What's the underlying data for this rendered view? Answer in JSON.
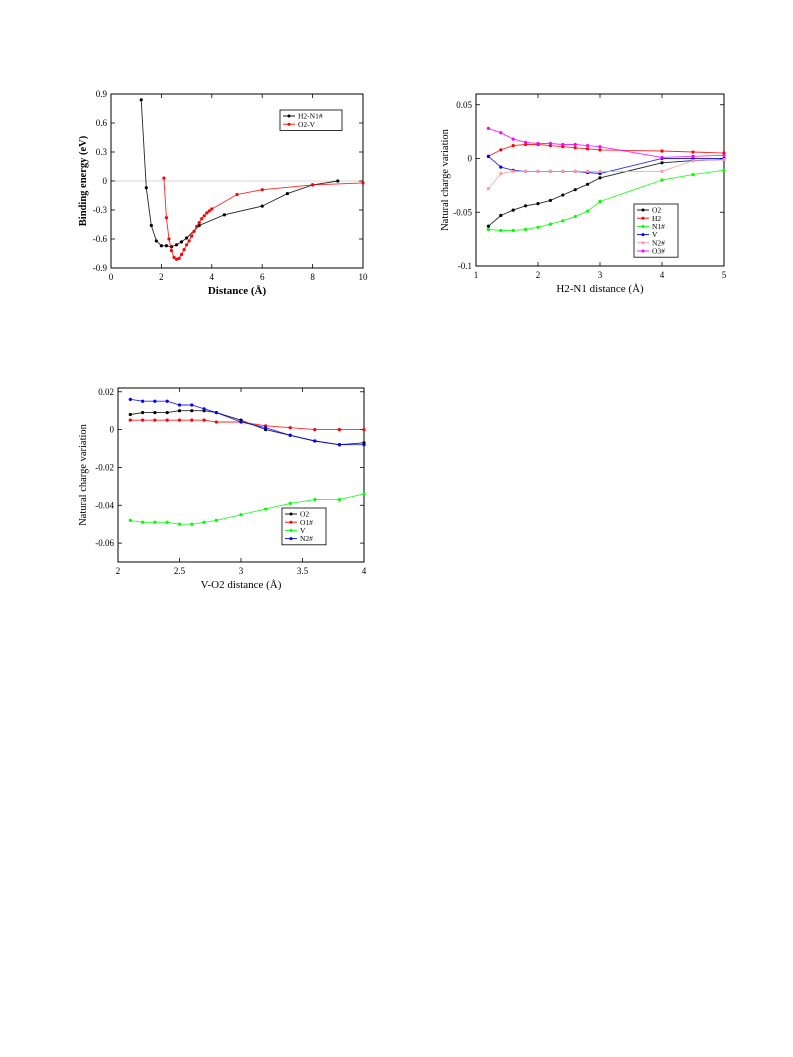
{
  "chart_data": [
    {
      "type": "line",
      "xlabel": "Distance (Å)",
      "ylabel": "Binding energy (eV)",
      "xlim": [
        0,
        10
      ],
      "ylim": [
        -0.9,
        0.9
      ],
      "xticks": [
        0,
        2,
        4,
        6,
        8,
        10
      ],
      "xtick_labels": [
        "0",
        "2",
        "4",
        "6",
        "8",
        "10"
      ],
      "yticks": [
        -0.9,
        -0.6,
        -0.3,
        0,
        0.3,
        0.6,
        0.9
      ],
      "ytick_labels": [
        "-0.9",
        "-0.6",
        "-0.3",
        "0",
        "0.3",
        "0.6",
        "0.9"
      ],
      "zero_line": true,
      "legend_position": "top-right",
      "series": [
        {
          "name": "H2-N1#",
          "color": "#000000",
          "x": [
            1.2,
            1.4,
            1.6,
            1.8,
            2.0,
            2.2,
            2.4,
            2.6,
            2.8,
            3.0,
            3.5,
            4.5,
            6.0,
            7.0,
            8.0,
            9.0
          ],
          "y": [
            0.84,
            -0.07,
            -0.46,
            -0.62,
            -0.67,
            -0.67,
            -0.68,
            -0.66,
            -0.63,
            -0.59,
            -0.46,
            -0.35,
            -0.26,
            -0.13,
            -0.04,
            0.0
          ]
        },
        {
          "name": "O2-V",
          "color": "#ff0000",
          "x": [
            2.1,
            2.2,
            2.3,
            2.4,
            2.5,
            2.6,
            2.7,
            2.8,
            2.9,
            3.0,
            3.1,
            3.2,
            3.3,
            3.4,
            3.5,
            3.6,
            3.7,
            3.8,
            3.9,
            4.0,
            5.0,
            6.0,
            8.0,
            10.0
          ],
          "y": [
            0.03,
            -0.38,
            -0.6,
            -0.72,
            -0.79,
            -0.81,
            -0.8,
            -0.76,
            -0.71,
            -0.66,
            -0.62,
            -0.57,
            -0.52,
            -0.47,
            -0.43,
            -0.39,
            -0.36,
            -0.33,
            -0.31,
            -0.29,
            -0.14,
            -0.09,
            -0.04,
            -0.02
          ]
        }
      ]
    },
    {
      "type": "line",
      "xlabel": "H2-N1 distance (Å)",
      "ylabel": "Natural charge variation",
      "xlim": [
        1,
        5
      ],
      "ylim": [
        -0.1,
        0.06
      ],
      "xticks": [
        1,
        2,
        3,
        4,
        5
      ],
      "xtick_labels": [
        "1",
        "2",
        "3",
        "4",
        "5"
      ],
      "yticks": [
        -0.1,
        -0.05,
        0,
        0.05
      ],
      "ytick_labels": [
        "-0.1",
        "-0.05",
        "0",
        "0.05"
      ],
      "legend_position": "bottom-right",
      "series": [
        {
          "name": "O2",
          "color": "#000000",
          "x": [
            1.2,
            1.4,
            1.6,
            1.8,
            2.0,
            2.2,
            2.4,
            2.6,
            2.8,
            3.0,
            4.0,
            4.5,
            5.0
          ],
          "y": [
            -0.063,
            -0.053,
            -0.048,
            -0.044,
            -0.042,
            -0.039,
            -0.034,
            -0.029,
            -0.024,
            -0.018,
            -0.004,
            -0.002,
            -0.001
          ]
        },
        {
          "name": "H2",
          "color": "#ff0000",
          "x": [
            1.2,
            1.4,
            1.6,
            1.8,
            2.0,
            2.2,
            2.4,
            2.6,
            2.8,
            3.0,
            4.0,
            4.5,
            5.0
          ],
          "y": [
            0.002,
            0.008,
            0.012,
            0.013,
            0.013,
            0.012,
            0.011,
            0.01,
            0.009,
            0.008,
            0.007,
            0.006,
            0.005
          ]
        },
        {
          "name": "N1#",
          "color": "#00ff00",
          "x": [
            1.2,
            1.4,
            1.6,
            1.8,
            2.0,
            2.2,
            2.4,
            2.6,
            2.8,
            3.0,
            4.0,
            4.5,
            5.0
          ],
          "y": [
            -0.066,
            -0.067,
            -0.067,
            -0.066,
            -0.064,
            -0.061,
            -0.058,
            -0.054,
            -0.049,
            -0.04,
            -0.02,
            -0.015,
            -0.011
          ]
        },
        {
          "name": "V",
          "color": "#0000ff",
          "x": [
            1.2,
            1.4,
            1.6,
            1.8,
            2.0,
            2.2,
            2.4,
            2.6,
            2.8,
            3.0,
            4.0,
            4.5,
            5.0
          ],
          "y": [
            0.002,
            -0.008,
            -0.011,
            -0.012,
            -0.012,
            -0.012,
            -0.012,
            -0.012,
            -0.013,
            -0.014,
            0.0,
            0.0,
            0.0
          ]
        },
        {
          "name": "N2#",
          "color": "#ff9999",
          "x": [
            1.2,
            1.4,
            1.6,
            1.8,
            2.0,
            2.2,
            2.4,
            2.6,
            2.8,
            3.0,
            4.0,
            4.5,
            5.0
          ],
          "y": [
            -0.028,
            -0.014,
            -0.012,
            -0.012,
            -0.012,
            -0.012,
            -0.012,
            -0.012,
            -0.012,
            -0.012,
            -0.012,
            -0.002,
            -0.001
          ]
        },
        {
          "name": "O3#",
          "color": "#ff00ff",
          "x": [
            1.2,
            1.4,
            1.6,
            1.8,
            2.0,
            2.2,
            2.4,
            2.6,
            2.8,
            3.0,
            4.0,
            4.5,
            5.0
          ],
          "y": [
            0.028,
            0.024,
            0.018,
            0.015,
            0.014,
            0.014,
            0.013,
            0.013,
            0.012,
            0.011,
            0.001,
            0.002,
            0.003
          ]
        }
      ]
    },
    {
      "type": "line",
      "xlabel": "V-O2 distance (Å)",
      "ylabel": "Natural charge variation",
      "xlim": [
        2,
        4
      ],
      "ylim": [
        -0.07,
        0.022
      ],
      "xticks": [
        2,
        2.5,
        3,
        3.5,
        4
      ],
      "xtick_labels": [
        "2",
        "2.5",
        "3",
        "3.5",
        "4"
      ],
      "yticks": [
        -0.06,
        -0.04,
        -0.02,
        0,
        0.02
      ],
      "ytick_labels": [
        "-0.06",
        "-0.04",
        "-0.02",
        "0",
        "0.02"
      ],
      "legend_position": "bottom-right",
      "series": [
        {
          "name": "O2",
          "color": "#000000",
          "x": [
            2.1,
            2.2,
            2.3,
            2.4,
            2.5,
            2.6,
            2.7,
            2.8,
            3.0,
            3.2,
            3.4,
            3.6,
            3.8,
            4.0
          ],
          "y": [
            0.008,
            0.009,
            0.009,
            0.009,
            0.01,
            0.01,
            0.01,
            0.009,
            0.005,
            0.0,
            -0.003,
            -0.006,
            -0.008,
            -0.007
          ]
        },
        {
          "name": "O1#",
          "color": "#ff0000",
          "x": [
            2.1,
            2.2,
            2.3,
            2.4,
            2.5,
            2.6,
            2.7,
            2.8,
            3.0,
            3.2,
            3.4,
            3.6,
            3.8,
            4.0
          ],
          "y": [
            0.005,
            0.005,
            0.005,
            0.005,
            0.005,
            0.005,
            0.005,
            0.004,
            0.004,
            0.002,
            0.001,
            0.0,
            0.0,
            0.0
          ]
        },
        {
          "name": "V",
          "color": "#00ff00",
          "x": [
            2.1,
            2.2,
            2.3,
            2.4,
            2.5,
            2.6,
            2.7,
            2.8,
            3.0,
            3.2,
            3.4,
            3.6,
            3.8,
            4.0
          ],
          "y": [
            -0.048,
            -0.049,
            -0.049,
            -0.049,
            -0.05,
            -0.05,
            -0.049,
            -0.048,
            -0.045,
            -0.042,
            -0.039,
            -0.037,
            -0.037,
            -0.034
          ]
        },
        {
          "name": "N2#",
          "color": "#0000ff",
          "x": [
            2.1,
            2.2,
            2.3,
            2.4,
            2.5,
            2.6,
            2.7,
            2.8,
            3.0,
            3.2,
            3.4,
            3.6,
            3.8,
            4.0
          ],
          "y": [
            0.016,
            0.015,
            0.015,
            0.015,
            0.013,
            0.013,
            0.011,
            0.009,
            0.004,
            0.001,
            -0.003,
            -0.006,
            -0.008,
            -0.008
          ]
        }
      ]
    }
  ]
}
